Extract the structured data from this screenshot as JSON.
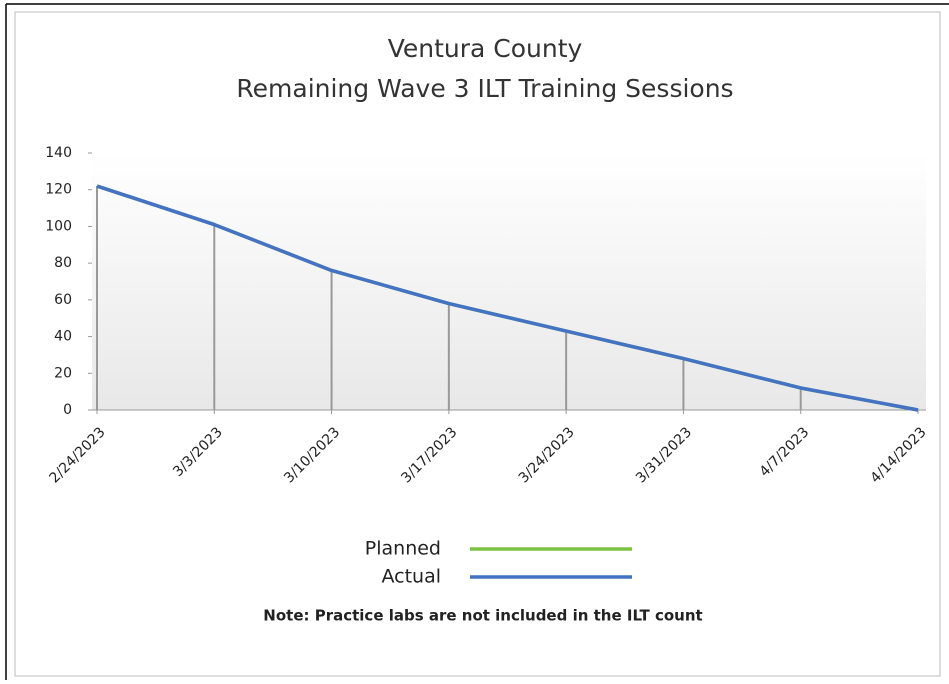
{
  "chart_data": {
    "type": "line",
    "title": [
      "Ventura County",
      "Remaining Wave 3 ILT Training Sessions"
    ],
    "x": [
      "2/24/2023",
      "3/3/2023",
      "3/10/2023",
      "3/17/2023",
      "3/24/2023",
      "3/31/2023",
      "4/7/2023",
      "4/14/2023"
    ],
    "series": [
      {
        "name": "Planned",
        "color": "#7dc242",
        "values": [
          122,
          101,
          76,
          58,
          43,
          28,
          12,
          0
        ]
      },
      {
        "name": "Actual",
        "color": "#4472c4",
        "values": [
          122,
          101,
          76,
          58,
          43,
          28,
          12,
          0
        ]
      }
    ],
    "ylim": [
      0,
      140
    ],
    "yticks": [
      0,
      20,
      40,
      60,
      80,
      100,
      120,
      140
    ],
    "drop_lines": true,
    "note": "Note: Practice labs are not included in the ILT count"
  }
}
